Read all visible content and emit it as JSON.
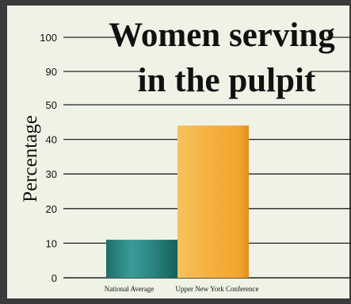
{
  "chart_data": {
    "type": "bar",
    "title_line1": "Women serving",
    "title_line2": "in the pulpit",
    "ylabel": "Percentage",
    "categories": [
      "National Average",
      "Upper New York Conference"
    ],
    "values": [
      11,
      44
    ],
    "y_ticks": [
      0,
      10,
      20,
      30,
      40,
      50,
      90,
      100
    ],
    "grid": true,
    "colors": {
      "national_average": "#2e8a86",
      "upper_new_york": "#f5b040",
      "background": "#eef3e6",
      "frame": "#3a3a3a"
    }
  }
}
